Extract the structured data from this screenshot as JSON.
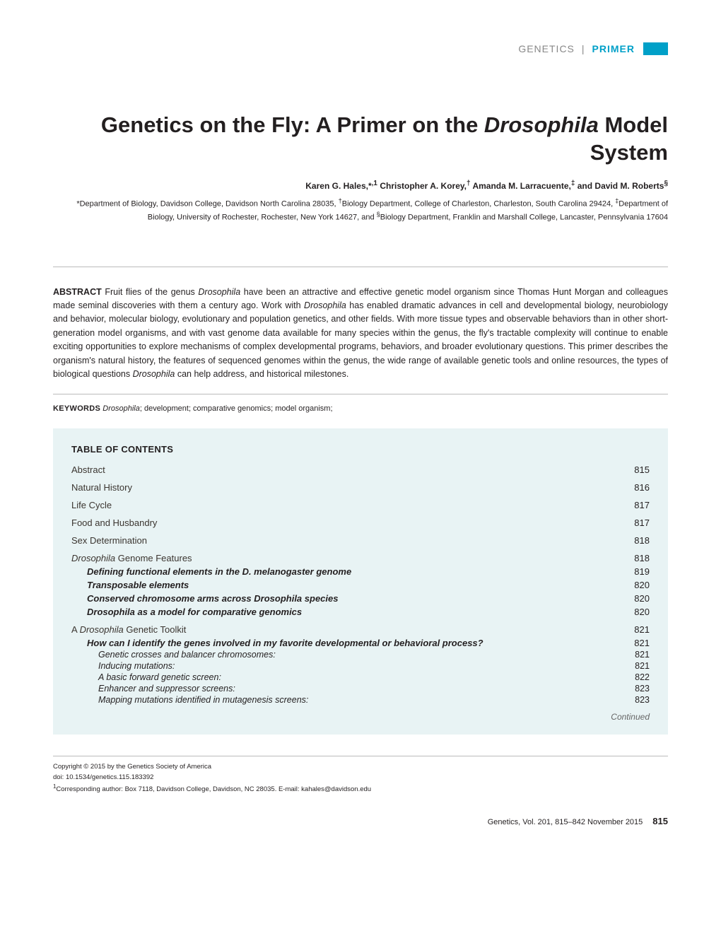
{
  "brand": {
    "journal": "GENETICS",
    "separator": "|",
    "section": "PRIMER"
  },
  "title_html": "Genetics on the Fly: A Primer on the <em>Drosophila</em> Model System",
  "authors_html": "Karen G. Hales,*<sup>,1</sup> Christopher A. Korey,<sup>†</sup> Amanda M. Larracuente,<sup>‡</sup> and David M. Roberts<sup>§</sup>",
  "affiliations_html": "*Department of Biology, Davidson College, Davidson North Carolina 28035, <sup>†</sup>Biology Department, College of Charleston, Charleston, South Carolina 29424, <sup>‡</sup>Department of Biology, University of Rochester, Rochester, New York 14627, and <sup>§</sup>Biology Department, Franklin and Marshall College, Lancaster, Pennsylvania 17604",
  "abstract_html": "<strong>ABSTRACT</strong> Fruit flies of the genus <em>Drosophila</em> have been an attractive and effective genetic model organism since Thomas Hunt Morgan and colleagues made seminal discoveries with them a century ago. Work with <em>Drosophila</em> has enabled dramatic advances in cell and developmental biology, neurobiology and behavior, molecular biology, evolutionary and population genetics, and other fields. With more tissue types and observable behaviors than in other short-generation model organisms, and with vast genome data available for many species within the genus, the fly's tractable complexity will continue to enable exciting opportunities to explore mechanisms of complex developmental programs, behaviors, and broader evolutionary questions. This primer describes the organism's natural history, the features of sequenced genomes within the genus, the wide range of available genetic tools and online resources, the types of biological questions <em>Drosophila</em> can help address, and historical milestones.",
  "keywords_html": "<strong>KEYWORDS</strong> <em>Drosophila</em>; development; comparative genomics; model organism;",
  "toc": {
    "heading": "TABLE OF CONTENTS",
    "entries": [
      {
        "level": 1,
        "label": "Abstract",
        "page": "815"
      },
      {
        "level": 1,
        "label": "Natural History",
        "page": "816"
      },
      {
        "level": 1,
        "label": "Life Cycle",
        "page": "817"
      },
      {
        "level": 1,
        "label": "Food and Husbandry",
        "page": "817"
      },
      {
        "level": 1,
        "label": "Sex Determination",
        "page": "818"
      },
      {
        "level": 1,
        "label_html": "<em>Drosophila</em> Genome Features",
        "page": "818"
      },
      {
        "level": 2,
        "label": "Defining functional elements in the D. melanogaster genome",
        "page": "819"
      },
      {
        "level": 2,
        "label": "Transposable elements",
        "page": "820"
      },
      {
        "level": 2,
        "label": "Conserved chromosome arms across Drosophila species",
        "page": "820"
      },
      {
        "level": 2,
        "label": "Drosophila as a model for comparative genomics",
        "page": "820"
      },
      {
        "level": 1,
        "label_html": "A <em>Drosophila</em> Genetic Toolkit",
        "page": "821"
      },
      {
        "level": 2,
        "label": "How can I identify the genes involved in my favorite developmental or behavioral process?",
        "page": "821"
      },
      {
        "level": 3,
        "label": "Genetic crosses and balancer chromosomes:",
        "page": "821"
      },
      {
        "level": 3,
        "label": "Inducing mutations:",
        "page": "821"
      },
      {
        "level": 3,
        "label": "A basic forward genetic screen:",
        "page": "822"
      },
      {
        "level": 3,
        "label": "Enhancer and suppressor screens:",
        "page": "823"
      },
      {
        "level": 3,
        "label": "Mapping mutations identified in mutagenesis screens:",
        "page": "823"
      }
    ],
    "continued": "Continued"
  },
  "footer": {
    "copyright": "Copyright © 2015 by the Genetics Society of America",
    "doi": "doi: 10.1534/genetics.115.183392",
    "corresponding_html": "<sup>1</sup>Corresponding author: Box 7118, Davidson College, Davidson, NC 28035. E-mail: kahales@davidson.edu"
  },
  "page_footer": {
    "citation": "Genetics, Vol. 201, 815–842   November 2015",
    "page": "815"
  },
  "colors": {
    "accent": "#00a0c8",
    "toc_bg": "#e8f3f4",
    "rule": "#bbbbbb",
    "brand_gray": "#888888"
  }
}
